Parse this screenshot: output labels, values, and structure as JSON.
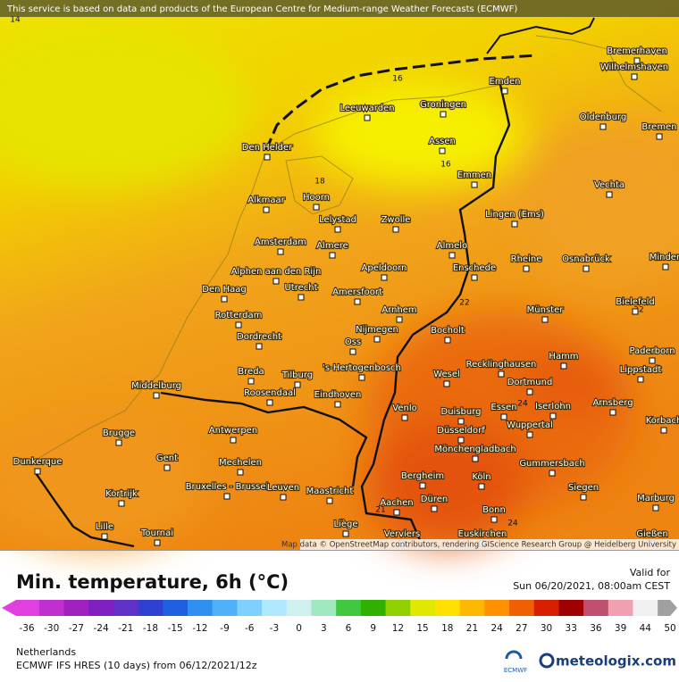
{
  "notice": "This service is based on data and products of the European Centre for Medium-range Weather Forecasts (ECMWF)",
  "map": {
    "contour_labels": [
      14,
      16,
      16,
      18,
      22,
      22,
      24,
      24,
      21
    ],
    "cities": [
      "Bremerhaven",
      "Wilhelmshaven",
      "Emden",
      "Oldenburg",
      "Bremen",
      "Leeuwarden",
      "Groningen",
      "Assen",
      "Emmen",
      "Den Helder",
      "Vechta",
      "Hoorn",
      "Alkmaar",
      "Lelystad",
      "Zwolle",
      "Lingen (Ems)",
      "Amsterdam",
      "Almere",
      "Almelo",
      "Rheine",
      "Osnabrück",
      "Minden",
      "Alphen aan den Rijn",
      "Apeldoorn",
      "Enschede",
      "Den Haag",
      "Utrecht",
      "Amersfoort",
      "Bielefeld",
      "Arnhem",
      "Münster",
      "Rotterdam",
      "Nijmegen",
      "Bocholt",
      "Dordrecht",
      "Oss",
      "Paderborn",
      "Hamm",
      "Recklinghausen",
      "Breda",
      "Tilburg",
      "'s-Hertogenbosch",
      "Lippstadt",
      "Wesel",
      "Middelburg",
      "Roosendaal",
      "Eindhoven",
      "Dortmund",
      "Arnsberg",
      "Venlo",
      "Duisburg",
      "Essen",
      "Iserlohn",
      "Korbach",
      "Wuppertal",
      "Brugge",
      "Antwerpen",
      "Düsseldorf",
      "Mönchengladbach",
      "Gent",
      "Dunkerque",
      "Mechelen",
      "Gummersbach",
      "Bergheim",
      "Köln",
      "Kortrijk",
      "Bruxelles - Brussel",
      "Leuven",
      "Maastricht",
      "Düren",
      "Siegen",
      "Marburg",
      "Aachen",
      "Bonn",
      "Lille",
      "Liège",
      "Tournai",
      "Euskirchen",
      "Verviers",
      "Gießen"
    ],
    "attribution": "Map data © OpenStreetMap contributors, rendering GIScience Research Group @ Heidelberg University"
  },
  "legend": {
    "title": "Min. temperature, 6h (°C)",
    "valid_label": "Valid for",
    "valid_time": "Sun 06/20/2021, 08:00am CEST",
    "scale_ticks": [
      -36,
      -30,
      -27,
      -24,
      -21,
      -18,
      -15,
      -12,
      -9,
      -6,
      -3,
      0,
      3,
      6,
      9,
      12,
      15,
      18,
      21,
      24,
      27,
      30,
      33,
      36,
      39,
      44,
      50
    ]
  },
  "footer": {
    "region": "Netherlands",
    "model": "ECMWF IFS HRES (10 days) from 06/12/2021/12z",
    "ecmwf_logo": "ECMWF",
    "brand": "meteologix.com"
  }
}
